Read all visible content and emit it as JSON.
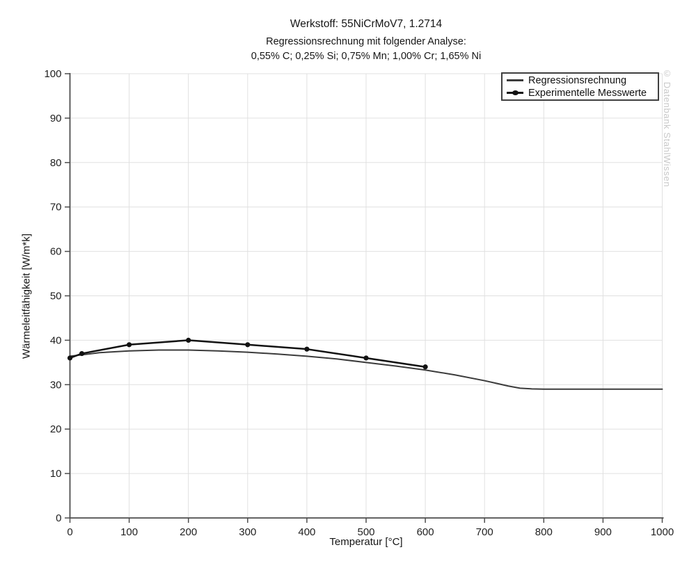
{
  "header": {
    "title": "Werkstoff: 55NiCrMoV7, 1.2714",
    "subtitle1": "Regressionsrechnung mit folgender Analyse:",
    "subtitle2": "0,55% C; 0,25% Si; 0,75% Mn; 1,00% Cr; 1,65% Ni"
  },
  "watermark": "© Datenbank StahlWissen",
  "chart_data": {
    "type": "line",
    "title": "Werkstoff: 55NiCrMoV7, 1.2714",
    "xlabel": "Temperatur [°C]",
    "ylabel": "Wärmeleitfähigkeit [W/m*k]",
    "xlim": [
      0,
      1000
    ],
    "ylim": [
      0,
      100
    ],
    "x_ticks": [
      0,
      100,
      200,
      300,
      400,
      500,
      600,
      700,
      800,
      900,
      1000
    ],
    "y_ticks": [
      0,
      10,
      20,
      30,
      40,
      50,
      60,
      70,
      80,
      90,
      100
    ],
    "grid": true,
    "legend_position": "top-right",
    "colors": {
      "regression_line": "#3b3b3b",
      "experimental_line": "#121212",
      "grid_line": "#e0e0e0",
      "axis_line": "#4d4d4d"
    },
    "series": [
      {
        "name": "Regressionsrechnung",
        "type": "line",
        "markers": false,
        "color": "#3b3b3b",
        "width": 2,
        "x": [
          0,
          50,
          100,
          150,
          200,
          250,
          300,
          350,
          400,
          450,
          500,
          550,
          600,
          650,
          700,
          720,
          740,
          760,
          780,
          800,
          850,
          900,
          950,
          1000
        ],
        "y": [
          36.4,
          37.2,
          37.6,
          37.8,
          37.8,
          37.6,
          37.3,
          36.9,
          36.4,
          35.8,
          35.0,
          34.2,
          33.3,
          32.2,
          30.9,
          30.3,
          29.7,
          29.2,
          29.05,
          29,
          29,
          29,
          29,
          29
        ]
      },
      {
        "name": "Experimentelle Messwerte",
        "type": "line",
        "markers": true,
        "color": "#121212",
        "width": 2.5,
        "x": [
          0,
          20,
          100,
          200,
          300,
          400,
          500,
          600
        ],
        "y": [
          36,
          37,
          39,
          40,
          39,
          38,
          36,
          34
        ]
      }
    ]
  }
}
